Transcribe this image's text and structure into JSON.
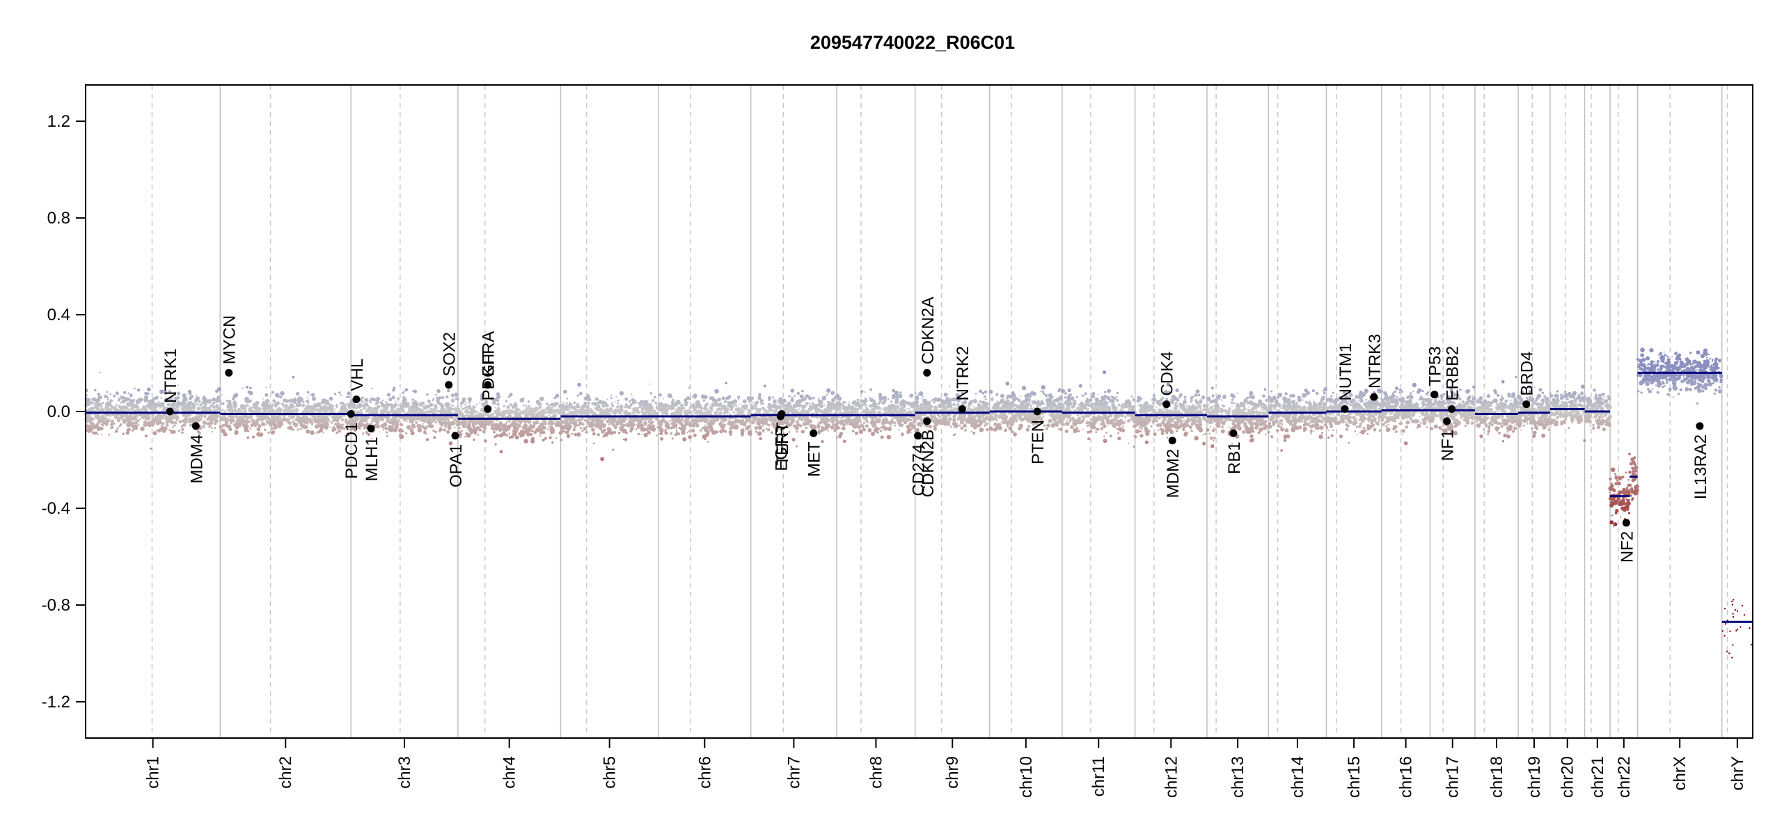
{
  "chart_data": {
    "type": "scatter",
    "title": "209547740022_R06C01",
    "xlabel": "",
    "ylabel": "",
    "ylim": [
      -1.35,
      1.35
    ],
    "y_ticks": [
      -1.2,
      -0.8,
      -0.4,
      0.0,
      0.4,
      0.8,
      1.2
    ],
    "y_tick_labels": [
      "-1.2",
      "-0.8",
      "-0.4",
      "0.0",
      "0.4",
      "0.8",
      "1.2"
    ],
    "grid": false,
    "colors": {
      "positive": "#8c8fbf",
      "neutral": "#c8c8c8",
      "negative": "#b67d7d",
      "deep_negative": "#8b0000",
      "segment": "#00007f",
      "marker": "#000000",
      "boundary": "#c0c0c0",
      "centromere": "#c8c8c8"
    },
    "chromosomes": [
      {
        "name": "chr1",
        "length_mb": 249,
        "centromere_mb": 123
      },
      {
        "name": "chr2",
        "length_mb": 242,
        "centromere_mb": 93
      },
      {
        "name": "chr3",
        "length_mb": 198,
        "centromere_mb": 91
      },
      {
        "name": "chr4",
        "length_mb": 190,
        "centromere_mb": 50
      },
      {
        "name": "chr5",
        "length_mb": 181,
        "centromere_mb": 48
      },
      {
        "name": "chr6",
        "length_mb": 171,
        "centromere_mb": 59
      },
      {
        "name": "chr7",
        "length_mb": 159,
        "centromere_mb": 60
      },
      {
        "name": "chr8",
        "length_mb": 145,
        "centromere_mb": 45
      },
      {
        "name": "chr9",
        "length_mb": 138,
        "centromere_mb": 49
      },
      {
        "name": "chr10",
        "length_mb": 134,
        "centromere_mb": 40
      },
      {
        "name": "chr11",
        "length_mb": 135,
        "centromere_mb": 53
      },
      {
        "name": "chr12",
        "length_mb": 133,
        "centromere_mb": 35
      },
      {
        "name": "chr13",
        "length_mb": 114,
        "centromere_mb": 17
      },
      {
        "name": "chr14",
        "length_mb": 107,
        "centromere_mb": 17
      },
      {
        "name": "chr15",
        "length_mb": 102,
        "centromere_mb": 19
      },
      {
        "name": "chr16",
        "length_mb": 90,
        "centromere_mb": 36
      },
      {
        "name": "chr17",
        "length_mb": 83,
        "centromere_mb": 24
      },
      {
        "name": "chr18",
        "length_mb": 80,
        "centromere_mb": 17
      },
      {
        "name": "chr19",
        "length_mb": 59,
        "centromere_mb": 26
      },
      {
        "name": "chr20",
        "length_mb": 64,
        "centromere_mb": 28
      },
      {
        "name": "chr21",
        "length_mb": 47,
        "centromere_mb": 12
      },
      {
        "name": "chr22",
        "length_mb": 51,
        "centromere_mb": 15
      },
      {
        "name": "chrX",
        "length_mb": 156,
        "centromere_mb": 60
      },
      {
        "name": "chrY",
        "length_mb": 57,
        "centromere_mb": 10
      }
    ],
    "segments": [
      {
        "chr": "chr1",
        "start_mb": 0,
        "end_mb": 249,
        "value": -0.005
      },
      {
        "chr": "chr2",
        "start_mb": 0,
        "end_mb": 242,
        "value": -0.01
      },
      {
        "chr": "chr3",
        "start_mb": 0,
        "end_mb": 198,
        "value": -0.015
      },
      {
        "chr": "chr4",
        "start_mb": 0,
        "end_mb": 190,
        "value": -0.03
      },
      {
        "chr": "chr5",
        "start_mb": 0,
        "end_mb": 181,
        "value": -0.02
      },
      {
        "chr": "chr6",
        "start_mb": 0,
        "end_mb": 171,
        "value": -0.02
      },
      {
        "chr": "chr7",
        "start_mb": 0,
        "end_mb": 159,
        "value": -0.015
      },
      {
        "chr": "chr8",
        "start_mb": 0,
        "end_mb": 145,
        "value": -0.015
      },
      {
        "chr": "chr9",
        "start_mb": 0,
        "end_mb": 138,
        "value": -0.005
      },
      {
        "chr": "chr10",
        "start_mb": 0,
        "end_mb": 134,
        "value": 0.0
      },
      {
        "chr": "chr11",
        "start_mb": 0,
        "end_mb": 135,
        "value": -0.005
      },
      {
        "chr": "chr12",
        "start_mb": 0,
        "end_mb": 133,
        "value": -0.015
      },
      {
        "chr": "chr13",
        "start_mb": 0,
        "end_mb": 114,
        "value": -0.02
      },
      {
        "chr": "chr14",
        "start_mb": 0,
        "end_mb": 107,
        "value": -0.005
      },
      {
        "chr": "chr15",
        "start_mb": 0,
        "end_mb": 102,
        "value": 0.0
      },
      {
        "chr": "chr16",
        "start_mb": 0,
        "end_mb": 90,
        "value": 0.005
      },
      {
        "chr": "chr17",
        "start_mb": 0,
        "end_mb": 83,
        "value": 0.005
      },
      {
        "chr": "chr18",
        "start_mb": 0,
        "end_mb": 80,
        "value": -0.01
      },
      {
        "chr": "chr19",
        "start_mb": 0,
        "end_mb": 59,
        "value": -0.005
      },
      {
        "chr": "chr20",
        "start_mb": 0,
        "end_mb": 64,
        "value": 0.01
      },
      {
        "chr": "chr21",
        "start_mb": 0,
        "end_mb": 47,
        "value": 0.0
      },
      {
        "chr": "chr22",
        "start_mb": 0,
        "end_mb": 36,
        "value": -0.35
      },
      {
        "chr": "chr22",
        "start_mb": 36,
        "end_mb": 51,
        "value": -0.27
      },
      {
        "chr": "chrX",
        "start_mb": 0,
        "end_mb": 156,
        "value": 0.16
      },
      {
        "chr": "chrY",
        "start_mb": 0,
        "end_mb": 57,
        "value": -0.87
      }
    ],
    "genes": [
      {
        "name": "NTRK1",
        "chr": "chr1",
        "pos_mb": 156,
        "value": 0.0,
        "label_side": "up"
      },
      {
        "name": "MDM4",
        "chr": "chr1",
        "pos_mb": 204,
        "value": -0.06,
        "label_side": "down"
      },
      {
        "name": "MYCN",
        "chr": "chr2",
        "pos_mb": 16,
        "value": 0.16,
        "label_side": "up"
      },
      {
        "name": "VHL",
        "chr": "chr3",
        "pos_mb": 10,
        "value": 0.05,
        "label_side": "up"
      },
      {
        "name": "PDCD1",
        "chr": "chr2",
        "pos_mb": 242,
        "value": -0.01,
        "label_side": "down"
      },
      {
        "name": "MLH1",
        "chr": "chr3",
        "pos_mb": 37,
        "value": -0.07,
        "label_side": "down"
      },
      {
        "name": "SOX2",
        "chr": "chr3",
        "pos_mb": 181,
        "value": 0.11,
        "label_side": "up"
      },
      {
        "name": "OPA1",
        "chr": "chr3",
        "pos_mb": 193,
        "value": -0.1,
        "label_side": "down"
      },
      {
        "name": "KIT",
        "chr": "chr4",
        "pos_mb": 55,
        "value": 0.11,
        "label_side": "up"
      },
      {
        "name": "PDGFRA",
        "chr": "chr4",
        "pos_mb": 55,
        "value": 0.01,
        "label_side": "up"
      },
      {
        "name": "EGFR",
        "chr": "chr7",
        "pos_mb": 55,
        "value": -0.02,
        "label_side": "down"
      },
      {
        "name": "TERT",
        "chr": "chr7",
        "pos_mb": 57,
        "value": -0.01,
        "label_side": "down"
      },
      {
        "name": "MET",
        "chr": "chr7",
        "pos_mb": 116,
        "value": -0.09,
        "label_side": "down"
      },
      {
        "name": "CDKN2A",
        "chr": "chr9",
        "pos_mb": 22,
        "value": 0.16,
        "label_side": "up"
      },
      {
        "name": "CD274",
        "chr": "chr9",
        "pos_mb": 5,
        "value": -0.1,
        "label_side": "down"
      },
      {
        "name": "CDKN2B",
        "chr": "chr9",
        "pos_mb": 22,
        "value": -0.04,
        "label_side": "down"
      },
      {
        "name": "NTRK2",
        "chr": "chr9",
        "pos_mb": 87,
        "value": 0.01,
        "label_side": "up"
      },
      {
        "name": "PTEN",
        "chr": "chr10",
        "pos_mb": 88,
        "value": 0.0,
        "label_side": "down"
      },
      {
        "name": "CDK4",
        "chr": "chr12",
        "pos_mb": 58,
        "value": 0.03,
        "label_side": "up"
      },
      {
        "name": "MDM2",
        "chr": "chr12",
        "pos_mb": 69,
        "value": -0.12,
        "label_side": "down"
      },
      {
        "name": "RB1",
        "chr": "chr13",
        "pos_mb": 49,
        "value": -0.09,
        "label_side": "down"
      },
      {
        "name": "NUTM1",
        "chr": "chr15",
        "pos_mb": 34,
        "value": 0.01,
        "label_side": "up"
      },
      {
        "name": "NTRK3",
        "chr": "chr15",
        "pos_mb": 88,
        "value": 0.06,
        "label_side": "up"
      },
      {
        "name": "TP53",
        "chr": "chr17",
        "pos_mb": 8,
        "value": 0.07,
        "label_side": "up"
      },
      {
        "name": "ERBB2",
        "chr": "chr17",
        "pos_mb": 40,
        "value": 0.01,
        "label_side": "up"
      },
      {
        "name": "NF1",
        "chr": "chr17",
        "pos_mb": 31,
        "value": -0.04,
        "label_side": "down"
      },
      {
        "name": "BRD4",
        "chr": "chr19",
        "pos_mb": 15,
        "value": 0.03,
        "label_side": "up"
      },
      {
        "name": "NF2",
        "chr": "chr22",
        "pos_mb": 30,
        "value": -0.46,
        "label_side": "down"
      },
      {
        "name": "IL13RA2",
        "chr": "chrX",
        "pos_mb": 115,
        "value": -0.06,
        "label_side": "down"
      }
    ]
  }
}
